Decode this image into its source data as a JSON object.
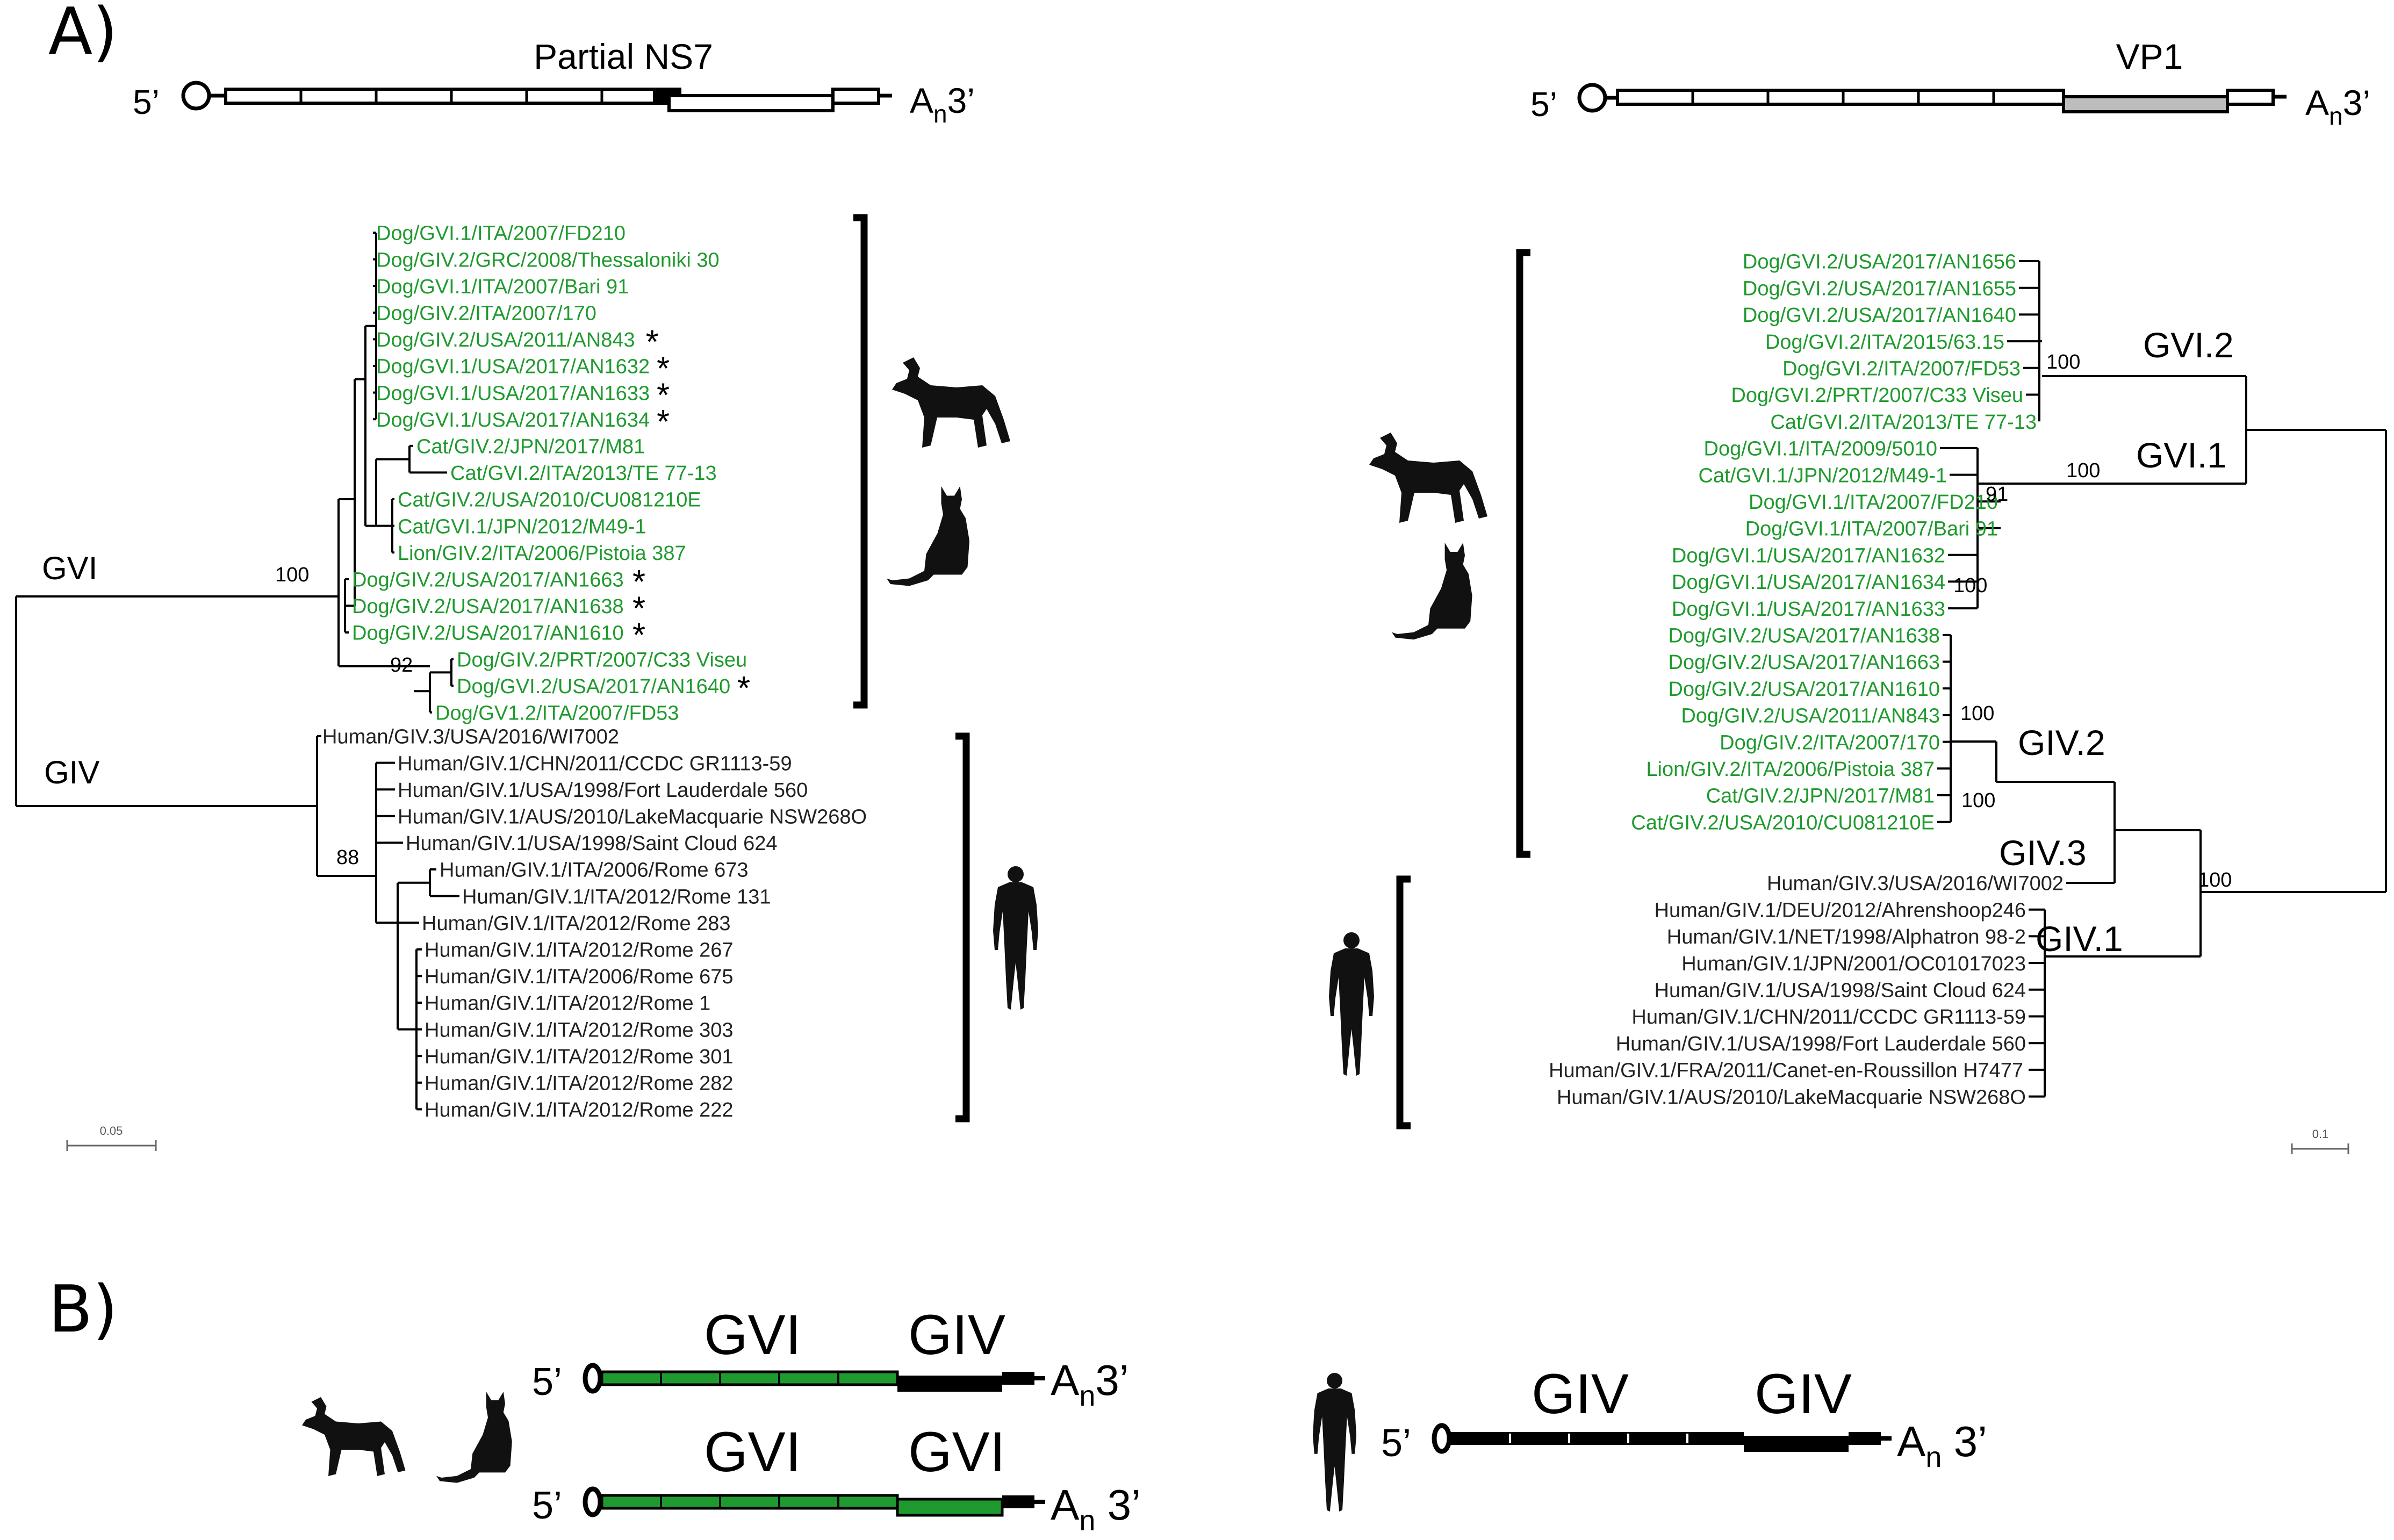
{
  "colors": {
    "animal": "#1f9a2e",
    "human": "#222222",
    "line": "#000000",
    "vp1_box": "#bdbdbd"
  },
  "icons": {
    "dog": "dog-silhouette-icon",
    "cat": "cat-silhouette-icon",
    "human": "human-silhouette-icon"
  },
  "panel_a": {
    "label": "A)",
    "left": {
      "title": "Partial NS7",
      "five_prime": "5’",
      "tail_main": "A",
      "tail_sub": "n",
      "tail_end": "3’",
      "clade_gvi": "GVI",
      "clade_giv": "GIV",
      "boot_root_gvi": "100",
      "boot_root_giv": "88",
      "boot_92": "92",
      "scale_label": "0.05",
      "animal_taxa": [
        "Dog/GVI.1/ITA/2007/FD210",
        "Dog/GIV.2/GRC/2008/Thessaloniki 30",
        "Dog/GVI.1/ITA/2007/Bari 91",
        "Dog/GIV.2/ITA/2007/170",
        "Dog/GIV.2/USA/2011/AN843",
        "Dog/GVI.1/USA/2017/AN1632",
        "Dog/GVI.1/USA/2017/AN1633",
        "Dog/GVI.1/USA/2017/AN1634",
        "Cat/GIV.2/JPN/2017/M81",
        "Cat/GVI.2/ITA/2013/TE 77-13",
        "Cat/GIV.2/USA/2010/CU081210E",
        "Cat/GVI.1/JPN/2012/M49-1",
        "Lion/GIV.2/ITA/2006/Pistoia 387",
        "Dog/GIV.2/USA/2017/AN1663",
        "Dog/GIV.2/USA/2017/AN1638",
        "Dog/GIV.2/USA/2017/AN1610",
        "Dog/GIV.2/PRT/2007/C33 Viseu",
        "Dog/GVI.2/USA/2017/AN1640",
        "Dog/GV1.2/ITA/2007/FD53"
      ],
      "human_taxa": [
        "Human/GIV.3/USA/2016/WI7002",
        "Human/GIV.1/CHN/2011/CCDC GR1113-59",
        "Human/GIV.1/USA/1998/Fort Lauderdale 560",
        "Human/GIV.1/AUS/2010/LakeMacquarie NSW268O",
        "Human/GIV.1/USA/1998/Saint Cloud 624",
        "Human/GIV.1/ITA/2006/Rome 673",
        "Human/GIV.1/ITA/2012/Rome 131",
        "Human/GIV.1/ITA/2012/Rome 283",
        "Human/GIV.1/ITA/2012/Rome 267",
        "Human/GIV.1/ITA/2006/Rome 675",
        "Human/GIV.1/ITA/2012/Rome 1",
        "Human/GIV.1/ITA/2012/Rome 303",
        "Human/GIV.1/ITA/2012/Rome 301",
        "Human/GIV.1/ITA/2012/Rome 282",
        "Human/GIV.1/ITA/2012/Rome 222"
      ],
      "asterisk": "*"
    },
    "right": {
      "title": "VP1",
      "five_prime": "5’",
      "tail_main": "A",
      "tail_sub": "n",
      "tail_end": "3’",
      "labels": {
        "gvi2": "GVI.2",
        "gvi1": "GVI.1",
        "giv2": "GIV.2",
        "giv3": "GIV.3",
        "giv1": "GIV.1"
      },
      "boots": [
        "100",
        "100",
        "91",
        "100",
        "100",
        "100",
        "100"
      ],
      "scale_label": "0.1",
      "animal_taxa": [
        "Dog/GVI.2/USA/2017/AN1656",
        "Dog/GVI.2/USA/2017/AN1655",
        "Dog/GVI.2/USA/2017/AN1640",
        "Dog/GVI.2/ITA/2015/63.15",
        "Dog/GVI.2/ITA/2007/FD53",
        "Dog/GVI.2/PRT/2007/C33 Viseu",
        "Cat/GVI.2/ITA/2013/TE 77-13",
        "Dog/GVI.1/ITA/2009/5010",
        "Cat/GVI.1/JPN/2012/M49-1",
        "Dog/GVI.1/ITA/2007/FD210",
        "Dog/GVI.1/ITA/2007/Bari 91",
        "Dog/GVI.1/USA/2017/AN1632",
        "Dog/GVI.1/USA/2017/AN1634",
        "Dog/GVI.1/USA/2017/AN1633",
        "Dog/GIV.2/USA/2017/AN1638",
        "Dog/GIV.2/USA/2017/AN1663",
        "Dog/GIV.2/USA/2017/AN1610",
        "Dog/GIV.2/USA/2011/AN843",
        "Dog/GIV.2/ITA/2007/170",
        "Lion/GIV.2/ITA/2006/Pistoia 387",
        "Cat/GIV.2/JPN/2017/M81",
        "Cat/GIV.2/USA/2010/CU081210E"
      ],
      "human_taxa": [
        "Human/GIV.3/USA/2016/WI7002",
        "Human/GIV.1/DEU/2012/Ahrenshoop246",
        "Human/GIV.1/NET/1998/Alphatron 98-2",
        "Human/GIV.1/JPN/2001/OC01017023",
        "Human/GIV.1/USA/1998/Saint Cloud 624",
        "Human/GIV.1/CHN/2011/CCDC GR1113-59",
        "Human/GIV.1/USA/1998/Fort Lauderdale 560",
        "Human/GIV.1/FRA/2011/Canet-en-Roussillon H7477",
        "Human/GIV.1/AUS/2010/LakeMacquarie NSW268O"
      ]
    }
  },
  "panel_b": {
    "label": "B)",
    "genome1": {
      "five_prime": "5’",
      "left_label": "GVI",
      "right_label": "GIV",
      "tail_main": "A",
      "tail_sub": "n",
      "tail_end": "3’"
    },
    "genome2": {
      "five_prime": "5’",
      "left_label": "GVI",
      "right_label": "GVI",
      "tail_main": "A",
      "tail_sub": "n",
      "tail_end": " 3’"
    },
    "genome3": {
      "five_prime": "5’",
      "left_label": "GIV",
      "right_label": "GIV",
      "tail_main": "A",
      "tail_sub": "n",
      "tail_end": " 3’"
    }
  }
}
